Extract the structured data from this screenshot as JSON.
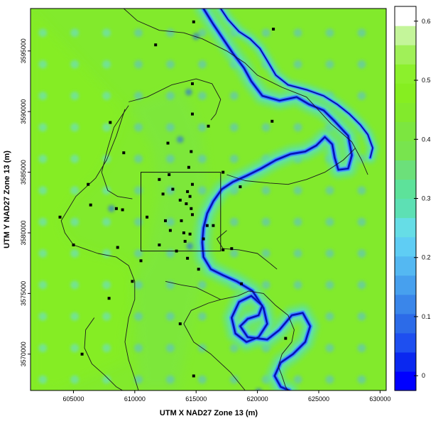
{
  "chart_data": {
    "type": "heatmap",
    "xlabel": "UTM X NAD27 Zone 13 (m)",
    "ylabel": "UTM Y NAD27 Zone 13 (m)",
    "xlim": [
      601500,
      630500
    ],
    "ylim": [
      3567000,
      3598500
    ],
    "x_ticks": [
      605000,
      610000,
      615000,
      620000,
      625000,
      630000
    ],
    "y_ticks": [
      3570000,
      3575000,
      3580000,
      3585000,
      3590000,
      3595000
    ],
    "x_tick_labels": [
      "605000",
      "610000",
      "615000",
      "620000",
      "625000",
      "630000"
    ],
    "y_tick_labels": [
      "3570000",
      "3575000",
      "3580000",
      "3585000",
      "3590000",
      "3595000"
    ],
    "colorbar": {
      "range": [
        -0.025,
        0.625
      ],
      "ticks": [
        0,
        0.1,
        0.2,
        0.3,
        0.4,
        0.5,
        0.6
      ],
      "tick_labels": [
        "0",
        "0.1",
        "0.2",
        "0.3",
        "0.4",
        "0.5",
        "0.6"
      ],
      "colors": [
        "#0000ff",
        "#0a28f0",
        "#1e4ff0",
        "#2c6be8",
        "#3a86ea",
        "#47a0ee",
        "#54b8f2",
        "#5fcdf4",
        "#66dde6",
        "#5de0b4",
        "#5de29a",
        "#6ce07a",
        "#78e44e",
        "#7ce640",
        "#82ea2c",
        "#86ee20",
        "#8cf02c",
        "#a0f058",
        "#c4f59a",
        "#ffffff"
      ]
    },
    "field": {
      "background_value": 0.43,
      "west_value": 0.47,
      "river_core_value": 0.02,
      "river_halo_value": 0.27
    },
    "inset_box": {
      "x": [
        610500,
        617000
      ],
      "y": [
        3578500,
        3585000
      ]
    },
    "wells": [
      [
        603900,
        3581300
      ],
      [
        605000,
        3579000
      ],
      [
        605700,
        3570000
      ],
      [
        606200,
        3584000
      ],
      [
        606400,
        3582300
      ],
      [
        607900,
        3574600
      ],
      [
        608000,
        3589100
      ],
      [
        608500,
        3582000
      ],
      [
        608600,
        3578800
      ],
      [
        609000,
        3581900
      ],
      [
        609100,
        3586600
      ],
      [
        609800,
        3576000
      ],
      [
        610500,
        3577700
      ],
      [
        611000,
        3581300
      ],
      [
        611700,
        3595500
      ],
      [
        612000,
        3584400
      ],
      [
        612000,
        3579000
      ],
      [
        612300,
        3583200
      ],
      [
        612500,
        3581000
      ],
      [
        612700,
        3587400
      ],
      [
        612800,
        3584800
      ],
      [
        612900,
        3580200
      ],
      [
        613100,
        3583600
      ],
      [
        613400,
        3578500
      ],
      [
        613700,
        3572500
      ],
      [
        613700,
        3582700
      ],
      [
        613800,
        3581000
      ],
      [
        614000,
        3580000
      ],
      [
        614200,
        3582400
      ],
      [
        614100,
        3579300
      ],
      [
        614300,
        3583400
      ],
      [
        614500,
        3583000
      ],
      [
        614600,
        3582000
      ],
      [
        614700,
        3584000
      ],
      [
        614500,
        3579900
      ],
      [
        614700,
        3581500
      ],
      [
        614400,
        3585400
      ],
      [
        614600,
        3586700
      ],
      [
        614700,
        3589800
      ],
      [
        614700,
        3592300
      ],
      [
        614800,
        3597400
      ],
      [
        614300,
        3577900
      ],
      [
        614800,
        3568200
      ],
      [
        615200,
        3577000
      ],
      [
        615600,
        3579500
      ],
      [
        615900,
        3580600
      ],
      [
        616400,
        3580600
      ],
      [
        617200,
        3578600
      ],
      [
        617900,
        3578700
      ],
      [
        617200,
        3585000
      ],
      [
        616000,
        3588800
      ],
      [
        618700,
        3575800
      ],
      [
        618600,
        3583800
      ],
      [
        621200,
        3589200
      ],
      [
        621300,
        3596800
      ],
      [
        622300,
        3571300
      ]
    ],
    "contour": [
      [
        [
          609100,
          3598500
        ],
        [
          610200,
          3597500
        ],
        [
          612000,
          3596700
        ],
        [
          614000,
          3596500
        ],
        [
          615500,
          3596000
        ],
        [
          617500,
          3595000
        ],
        [
          619000,
          3594000
        ],
        [
          620000,
          3593000
        ],
        [
          622000,
          3592000
        ],
        [
          624000,
          3591200
        ],
        [
          626000,
          3589000
        ],
        [
          627700,
          3587500
        ],
        [
          628500,
          3586000
        ],
        [
          629000,
          3584800
        ]
      ],
      [
        [
          609500,
          3590800
        ],
        [
          611000,
          3591200
        ],
        [
          613000,
          3592200
        ],
        [
          615000,
          3592700
        ],
        [
          616300,
          3592300
        ],
        [
          617000,
          3591000
        ],
        [
          616600,
          3589800
        ],
        [
          616200,
          3589300
        ]
      ],
      [
        [
          617500,
          3584800
        ],
        [
          619000,
          3584300
        ],
        [
          621000,
          3584100
        ],
        [
          622500,
          3584000
        ],
        [
          624000,
          3584400
        ],
        [
          625500,
          3585000
        ],
        [
          627000,
          3586000
        ],
        [
          628000,
          3587000
        ]
      ],
      [
        [
          609200,
          3590200
        ],
        [
          608500,
          3588000
        ],
        [
          607700,
          3586000
        ],
        [
          606800,
          3584500
        ],
        [
          605200,
          3583000
        ],
        [
          604000,
          3581000
        ],
        [
          604300,
          3580000
        ],
        [
          605000,
          3579000
        ],
        [
          607000,
          3578300
        ],
        [
          608500,
          3578000
        ],
        [
          609500,
          3577300
        ],
        [
          610000,
          3576000
        ],
        [
          610000,
          3574500
        ],
        [
          609500,
          3573000
        ],
        [
          609200,
          3571000
        ],
        [
          609500,
          3569500
        ],
        [
          610000,
          3568000
        ],
        [
          610300,
          3567000
        ]
      ],
      [
        [
          609800,
          3582800
        ],
        [
          608600,
          3583000
        ],
        [
          607800,
          3583500
        ],
        [
          607300,
          3585000
        ],
        [
          607800,
          3587000
        ],
        [
          608300,
          3588700
        ],
        [
          609500,
          3590500
        ]
      ],
      [
        [
          612500,
          3576000
        ],
        [
          613800,
          3575700
        ],
        [
          615000,
          3575500
        ],
        [
          616000,
          3575000
        ],
        [
          617000,
          3574500
        ],
        [
          618400,
          3574800
        ],
        [
          619300,
          3575200
        ],
        [
          620500,
          3575000
        ],
        [
          621500,
          3574000
        ],
        [
          622500,
          3573200
        ],
        [
          623000,
          3572000
        ],
        [
          622800,
          3571000
        ],
        [
          622000,
          3570000
        ],
        [
          621700,
          3569000
        ],
        [
          622000,
          3568200
        ],
        [
          622300,
          3567300
        ],
        [
          622500,
          3567000
        ]
      ],
      [
        [
          617500,
          3580200
        ],
        [
          616700,
          3579500
        ],
        [
          617200,
          3578700
        ],
        [
          618500,
          3578600
        ],
        [
          620000,
          3578300
        ],
        [
          621000,
          3577500
        ],
        [
          621600,
          3577000
        ]
      ],
      [
        [
          606700,
          3573000
        ],
        [
          606000,
          3572000
        ],
        [
          605900,
          3570500
        ],
        [
          606500,
          3569200
        ],
        [
          607500,
          3568300
        ],
        [
          608500,
          3567300
        ],
        [
          609000,
          3567000
        ]
      ],
      [
        [
          619000,
          3567000
        ],
        [
          617800,
          3568500
        ],
        [
          616200,
          3570000
        ],
        [
          614800,
          3571000
        ],
        [
          614000,
          3572500
        ],
        [
          614600,
          3573600
        ],
        [
          616000,
          3574200
        ],
        [
          617000,
          3574500
        ]
      ]
    ],
    "river_main": [
      [
        615600,
        3598500
      ],
      [
        616400,
        3597200
      ],
      [
        617200,
        3596000
      ],
      [
        618000,
        3594800
      ],
      [
        618900,
        3593600
      ],
      [
        619500,
        3592500
      ],
      [
        620400,
        3591300
      ],
      [
        621800,
        3590900
      ],
      [
        623200,
        3591200
      ],
      [
        624200,
        3590600
      ],
      [
        625400,
        3590100
      ],
      [
        626300,
        3589200
      ],
      [
        627400,
        3588000
      ],
      [
        627700,
        3586400
      ],
      [
        627400,
        3585300
      ],
      [
        626600,
        3585200
      ],
      [
        626300,
        3586200
      ],
      [
        626100,
        3587300
      ],
      [
        625500,
        3587900
      ],
      [
        624800,
        3587200
      ],
      [
        623900,
        3586700
      ],
      [
        622700,
        3586500
      ],
      [
        621500,
        3586000
      ],
      [
        620300,
        3585300
      ],
      [
        619100,
        3584700
      ],
      [
        618000,
        3584200
      ],
      [
        617100,
        3583600
      ],
      [
        616400,
        3582600
      ],
      [
        615900,
        3581600
      ],
      [
        615600,
        3580400
      ],
      [
        615500,
        3579200
      ],
      [
        615600,
        3578000
      ],
      [
        616200,
        3577000
      ],
      [
        617200,
        3576500
      ],
      [
        618300,
        3576000
      ],
      [
        619600,
        3575200
      ],
      [
        620500,
        3573800
      ],
      [
        620800,
        3572500
      ],
      [
        620100,
        3571400
      ],
      [
        619100,
        3571000
      ],
      [
        618200,
        3571700
      ],
      [
        617900,
        3573000
      ],
      [
        618500,
        3574300
      ],
      [
        619500,
        3574800
      ],
      [
        620400,
        3574000
      ],
      [
        620100,
        3573200
      ],
      [
        619200,
        3572900
      ],
      [
        618600,
        3572300
      ],
      [
        619200,
        3571400
      ],
      [
        620800,
        3571200
      ],
      [
        621800,
        3572000
      ],
      [
        622800,
        3573200
      ],
      [
        623700,
        3573400
      ],
      [
        624300,
        3572300
      ],
      [
        623900,
        3571000
      ],
      [
        622900,
        3570000
      ],
      [
        621900,
        3569300
      ],
      [
        621400,
        3568200
      ],
      [
        621900,
        3567300
      ],
      [
        622600,
        3567000
      ]
    ],
    "river_branch": [
      [
        617000,
        3598500
      ],
      [
        617600,
        3597600
      ],
      [
        618500,
        3596600
      ],
      [
        619400,
        3596000
      ],
      [
        620200,
        3595200
      ],
      [
        620800,
        3594200
      ],
      [
        621500,
        3593000
      ],
      [
        622500,
        3592200
      ],
      [
        624000,
        3591800
      ],
      [
        625400,
        3591300
      ],
      [
        626500,
        3590600
      ],
      [
        627500,
        3589800
      ],
      [
        628400,
        3588900
      ],
      [
        629000,
        3588100
      ],
      [
        629400,
        3587000
      ],
      [
        629200,
        3586200
      ]
    ],
    "dark_spots": [
      [
        615000,
        3596200
      ],
      [
        614400,
        3591600
      ],
      [
        613700,
        3587700
      ],
      [
        608100,
        3582000
      ],
      [
        614500,
        3578900
      ],
      [
        620100,
        3566900
      ]
    ]
  }
}
